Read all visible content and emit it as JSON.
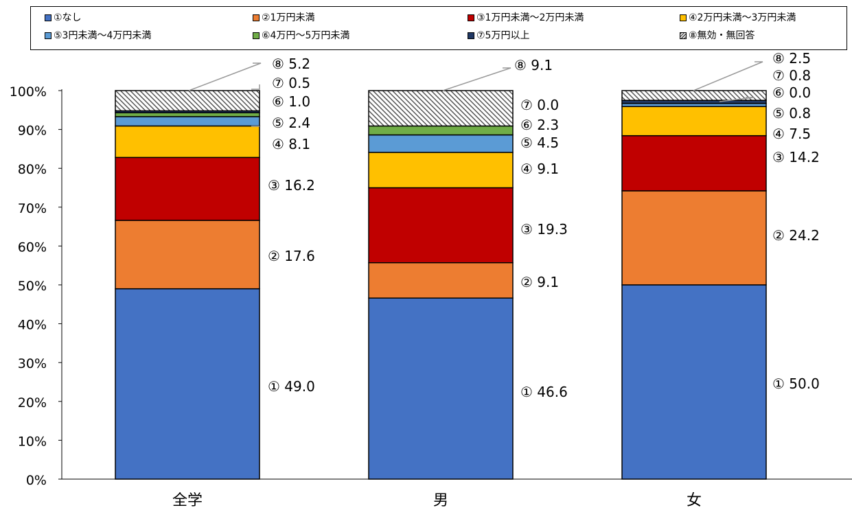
{
  "colors": {
    "s1": "#4472C4",
    "s2": "#ED7D31",
    "s3": "#C00000",
    "s4": "#FFC000",
    "s5": "#5B9BD5",
    "s6": "#70AD47",
    "s7": "#203864",
    "s8": "hatch"
  },
  "chart_data": {
    "type": "bar",
    "stacked": true,
    "percent": true,
    "categories": [
      "全学",
      "男",
      "女"
    ],
    "ylim": [
      0,
      100
    ],
    "yticks": [
      "0%",
      "10%",
      "20%",
      "30%",
      "40%",
      "50%",
      "60%",
      "70%",
      "80%",
      "90%",
      "100%"
    ],
    "legend_position": "top",
    "series": [
      {
        "name": "①なし",
        "color": "#4472C4",
        "values": [
          49.0,
          46.6,
          50.0
        ],
        "labels": [
          "① 49.0",
          "① 46.6",
          "① 50.0"
        ]
      },
      {
        "name": "②1万円未満",
        "color": "#ED7D31",
        "values": [
          17.6,
          9.1,
          24.2
        ],
        "labels": [
          "② 17.6",
          "② 9.1",
          "② 24.2"
        ]
      },
      {
        "name": "③1万円未満～2万円未満",
        "color": "#C00000",
        "values": [
          16.2,
          19.3,
          14.2
        ],
        "labels": [
          "③ 16.2",
          "③ 19.3",
          "③ 14.2"
        ]
      },
      {
        "name": "④2万円未満～3万円未満",
        "color": "#FFC000",
        "values": [
          8.1,
          9.1,
          7.5
        ],
        "labels": [
          "④ 8.1",
          "④ 9.1",
          "④ 7.5"
        ]
      },
      {
        "name": "⑤3円未満～4万円未満",
        "color": "#5B9BD5",
        "values": [
          2.4,
          4.5,
          0.8
        ],
        "labels": [
          "⑤ 2.4",
          "⑤ 4.5",
          "⑤ 0.8"
        ]
      },
      {
        "name": "⑥4万円～5万円未満",
        "color": "#70AD47",
        "values": [
          1.0,
          2.3,
          0.0
        ],
        "labels": [
          "⑥ 1.0",
          "⑥ 2.3",
          "⑥ 0.0"
        ]
      },
      {
        "name": "⑦5万円以上",
        "color": "#203864",
        "values": [
          0.5,
          0.0,
          0.8
        ],
        "labels": [
          "⑦ 0.5",
          "⑦ 0.0",
          "⑦ 0.8"
        ]
      },
      {
        "name": "⑧無効・無回答",
        "color": "hatch",
        "values": [
          5.2,
          9.1,
          2.5
        ],
        "labels": [
          "⑧ 5.2",
          "⑧ 9.1",
          "⑧ 2.5"
        ]
      }
    ]
  }
}
